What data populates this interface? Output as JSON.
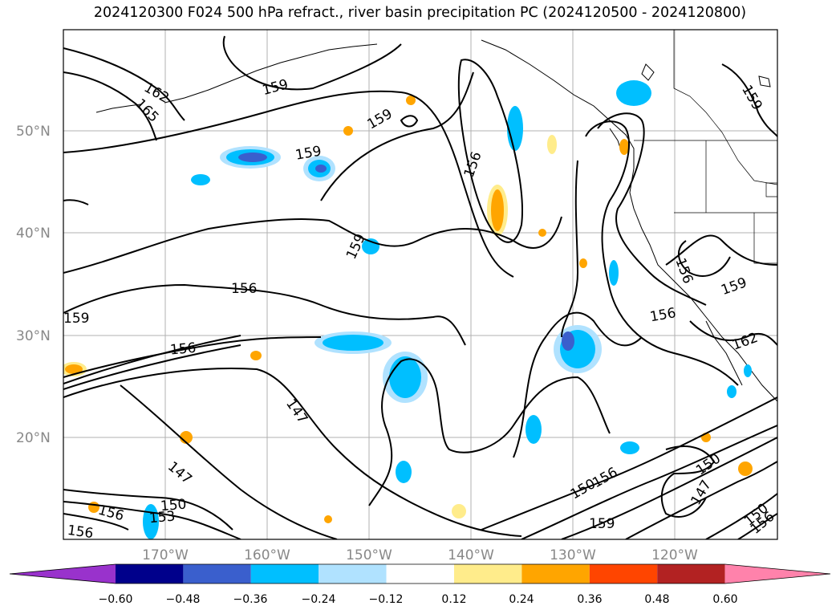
{
  "title": "2024120300 F024 500 hPa refract., river basin precipitation PC (2024120500 - 2024120800)",
  "map": {
    "lat_labels": [
      "50°N",
      "40°N",
      "30°N",
      "20°N"
    ],
    "lon_labels": [
      "170°W",
      "160°W",
      "150°W",
      "140°W",
      "130°W",
      "120°W"
    ],
    "contour_labels": [
      "162",
      "165",
      "159",
      "159",
      "159",
      "159",
      "156",
      "159",
      "156",
      "159",
      "156",
      "156",
      "159",
      "147",
      "147",
      "150",
      "153",
      "156",
      "156",
      "156",
      "159",
      "150",
      "156",
      "147",
      "150",
      "159",
      "162",
      "156",
      "150",
      "156"
    ],
    "colors": {
      "grid": "#b0b0b0",
      "contour": "#000000",
      "land_outline": "#000000",
      "neg_fill": "#00b4f0",
      "pos_fill": "#ffa000"
    }
  },
  "colorbar": {
    "ticks": [
      "−0.60",
      "−0.48",
      "−0.36",
      "−0.24",
      "−0.12",
      "0.12",
      "0.24",
      "0.36",
      "0.48",
      "0.60"
    ],
    "bins": [
      {
        "color": "#9932cc"
      },
      {
        "color": "#00008b"
      },
      {
        "color": "#3a5fcd"
      },
      {
        "color": "#00bfff"
      },
      {
        "color": "#b0e2ff"
      },
      {
        "color": "#ffffff"
      },
      {
        "color": "#ffec8b"
      },
      {
        "color": "#ffa500"
      },
      {
        "color": "#ff4500"
      },
      {
        "color": "#b22222"
      },
      {
        "color": "#ff82ab"
      }
    ]
  }
}
